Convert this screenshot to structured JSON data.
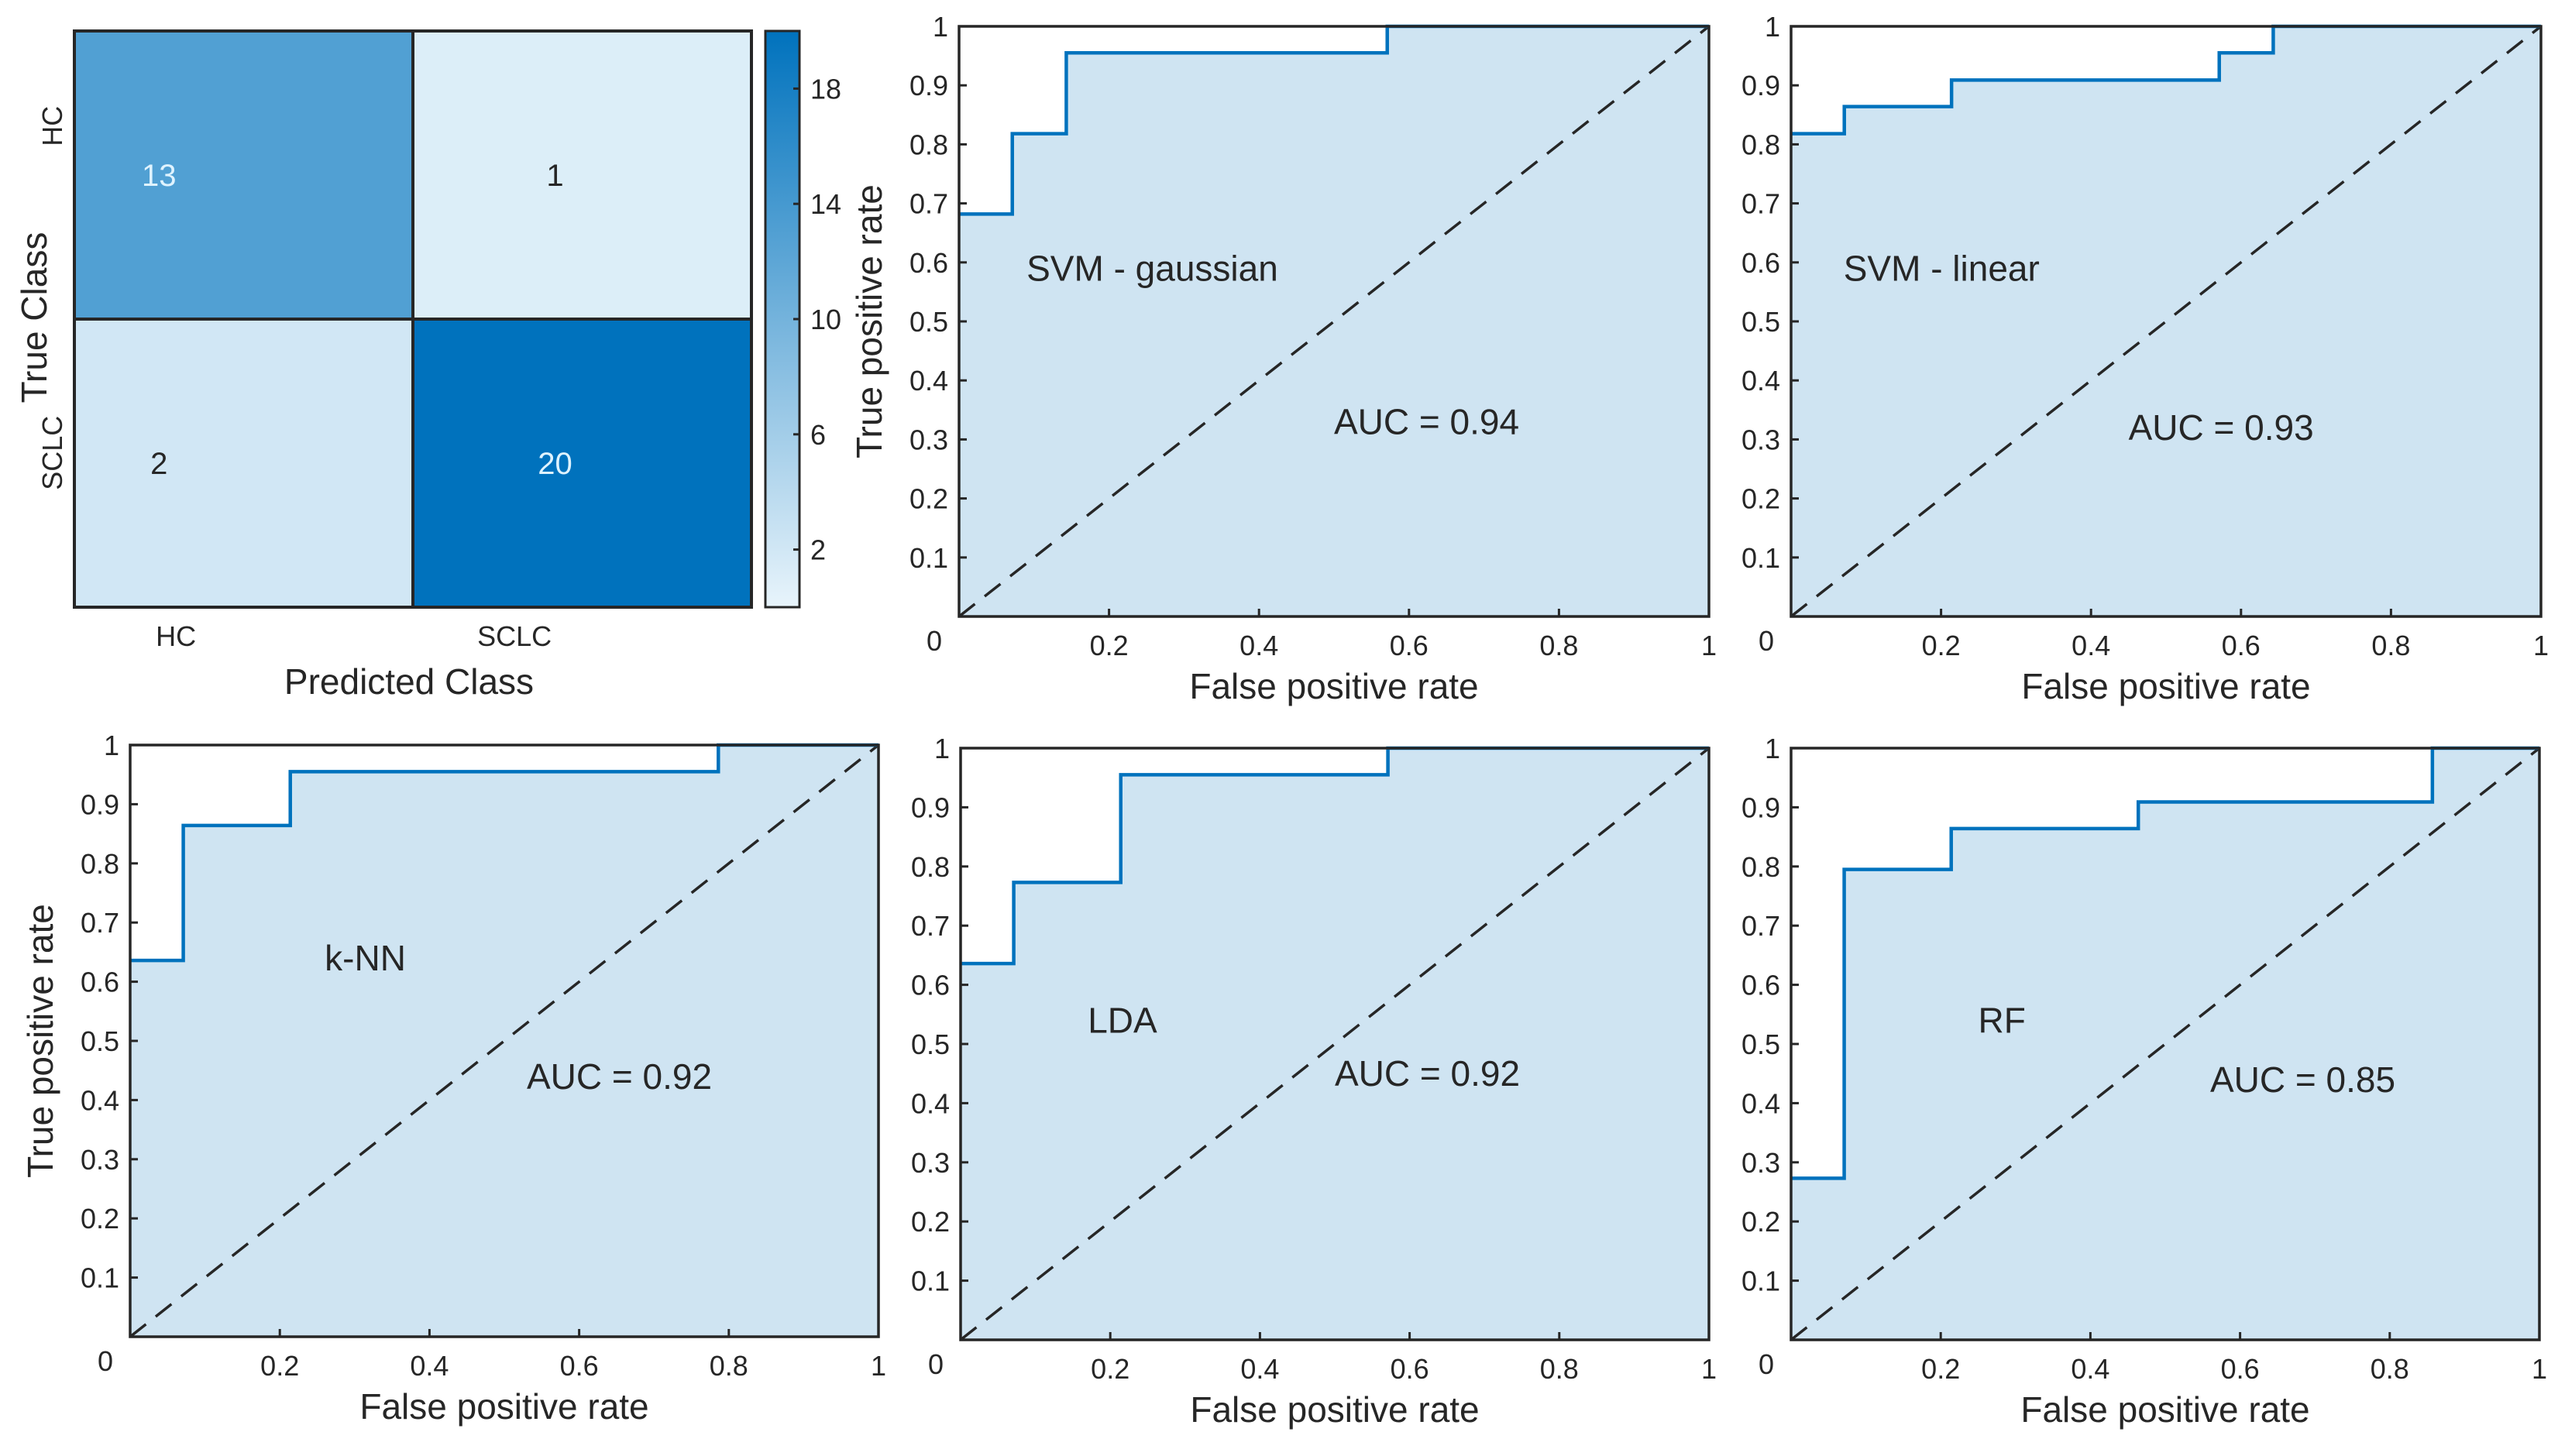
{
  "chart_data": [
    {
      "type": "heatmap",
      "name": "confusion-matrix",
      "xlabel": "Predicted Class",
      "ylabel": "True Class",
      "x_categories": [
        "HC",
        "SCLC"
      ],
      "y_categories": [
        "HC",
        "SCLC"
      ],
      "matrix": [
        [
          13,
          1
        ],
        [
          2,
          20
        ]
      ],
      "colorbar": {
        "ticks": [
          "2",
          "6",
          "10",
          "14",
          "18"
        ],
        "tick_values": [
          2,
          6,
          10,
          14,
          18
        ],
        "range": [
          0,
          20
        ]
      },
      "colors": {
        "low": "#e8f4fb",
        "high": "#0072bd",
        "text_dark": "#262626",
        "text_light": "#dff3ff"
      }
    },
    {
      "type": "line",
      "name": "roc-svm-gaussian",
      "label": "SVM - gaussian",
      "auc_text": "AUC = 0.94",
      "xlabel": "False positive rate",
      "ylabel": "True positive rate",
      "xlim": [
        0,
        1
      ],
      "ylim": [
        0,
        1
      ],
      "x_ticks": [
        "0",
        "0.2",
        "0.4",
        "0.6",
        "0.8",
        "1"
      ],
      "y_ticks": [
        "0",
        "0.1",
        "0.2",
        "0.3",
        "0.4",
        "0.5",
        "0.6",
        "0.7",
        "0.8",
        "0.9",
        "1"
      ],
      "x": [
        0,
        0.071,
        0.071,
        0.143,
        0.143,
        0.571,
        0.571,
        1.0
      ],
      "y": [
        0.682,
        0.682,
        0.818,
        0.818,
        0.955,
        0.955,
        1.0,
        1.0
      ],
      "label_pos": [
        0.09,
        0.59
      ],
      "auc_pos": [
        0.5,
        0.33
      ]
    },
    {
      "type": "line",
      "name": "roc-svm-linear",
      "label": "SVM - linear",
      "auc_text": "AUC = 0.93",
      "xlabel": "False positive rate",
      "ylabel": "",
      "xlim": [
        0,
        1
      ],
      "ylim": [
        0,
        1
      ],
      "x_ticks": [
        "0",
        "0.2",
        "0.4",
        "0.6",
        "0.8",
        "1"
      ],
      "y_ticks": [
        "0",
        "0.1",
        "0.2",
        "0.3",
        "0.4",
        "0.5",
        "0.6",
        "0.7",
        "0.8",
        "0.9",
        "1"
      ],
      "x": [
        0,
        0.071,
        0.071,
        0.214,
        0.214,
        0.571,
        0.571,
        0.643,
        0.643,
        1.0
      ],
      "y": [
        0.818,
        0.818,
        0.864,
        0.864,
        0.909,
        0.909,
        0.955,
        0.955,
        1.0,
        1.0
      ],
      "label_pos": [
        0.07,
        0.59
      ],
      "auc_pos": [
        0.45,
        0.32
      ]
    },
    {
      "type": "line",
      "name": "roc-knn",
      "label": "k-NN",
      "auc_text": "AUC = 0.92",
      "xlabel": "False positive rate",
      "ylabel": "True positive rate",
      "xlim": [
        0,
        1
      ],
      "ylim": [
        0,
        1
      ],
      "x_ticks": [
        "0",
        "0.2",
        "0.4",
        "0.6",
        "0.8",
        "1"
      ],
      "y_ticks": [
        "0",
        "0.1",
        "0.2",
        "0.3",
        "0.4",
        "0.5",
        "0.6",
        "0.7",
        "0.8",
        "0.9",
        "1"
      ],
      "x": [
        0,
        0.071,
        0.071,
        0.214,
        0.214,
        0.786,
        0.786,
        1.0
      ],
      "y": [
        0.636,
        0.636,
        0.864,
        0.864,
        0.955,
        0.955,
        1.0,
        1.0
      ],
      "label_pos": [
        0.26,
        0.64
      ],
      "auc_pos": [
        0.53,
        0.44
      ]
    },
    {
      "type": "line",
      "name": "roc-lda",
      "label": "LDA",
      "auc_text": "AUC = 0.92",
      "xlabel": "False positive rate",
      "ylabel": "",
      "xlim": [
        0,
        1
      ],
      "ylim": [
        0,
        1
      ],
      "x_ticks": [
        "0",
        "0.2",
        "0.4",
        "0.6",
        "0.8",
        "1"
      ],
      "y_ticks": [
        "0",
        "0.1",
        "0.2",
        "0.3",
        "0.4",
        "0.5",
        "0.6",
        "0.7",
        "0.8",
        "0.9",
        "1"
      ],
      "x": [
        0,
        0.071,
        0.071,
        0.214,
        0.214,
        0.571,
        0.571,
        1.0
      ],
      "y": [
        0.636,
        0.636,
        0.773,
        0.773,
        0.955,
        0.955,
        1.0,
        1.0
      ],
      "label_pos": [
        0.17,
        0.54
      ],
      "auc_pos": [
        0.5,
        0.45
      ]
    },
    {
      "type": "line",
      "name": "roc-rf",
      "label": "RF",
      "auc_text": "AUC = 0.85",
      "xlabel": "False positive rate",
      "ylabel": "",
      "xlim": [
        0,
        1
      ],
      "ylim": [
        0,
        1
      ],
      "x_ticks": [
        "0",
        "0.2",
        "0.4",
        "0.6",
        "0.8",
        "1"
      ],
      "y_ticks": [
        "0",
        "0.1",
        "0.2",
        "0.3",
        "0.4",
        "0.5",
        "0.6",
        "0.7",
        "0.8",
        "0.9",
        "1"
      ],
      "x": [
        0,
        0.071,
        0.071,
        0.214,
        0.214,
        0.464,
        0.464,
        0.857,
        0.857,
        1.0
      ],
      "y": [
        0.273,
        0.273,
        0.795,
        0.795,
        0.864,
        0.864,
        0.909,
        0.909,
        1.0,
        1.0
      ],
      "label_pos": [
        0.25,
        0.54
      ],
      "auc_pos": [
        0.56,
        0.44
      ]
    }
  ],
  "style": {
    "line_color": "#0072bd",
    "fill_color": "#cfe4f2",
    "axis_color": "#262626",
    "diagonal_color": "#262626"
  }
}
